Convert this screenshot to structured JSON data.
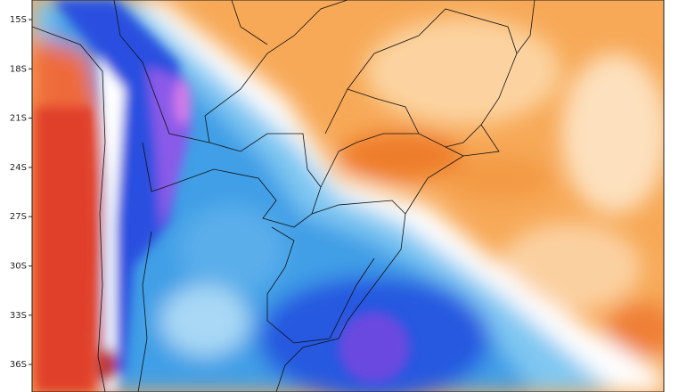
{
  "axis": {
    "latitude_labels": [
      "15S",
      "18S",
      "21S",
      "24S",
      "27S",
      "30S",
      "33S",
      "36S"
    ]
  }
}
